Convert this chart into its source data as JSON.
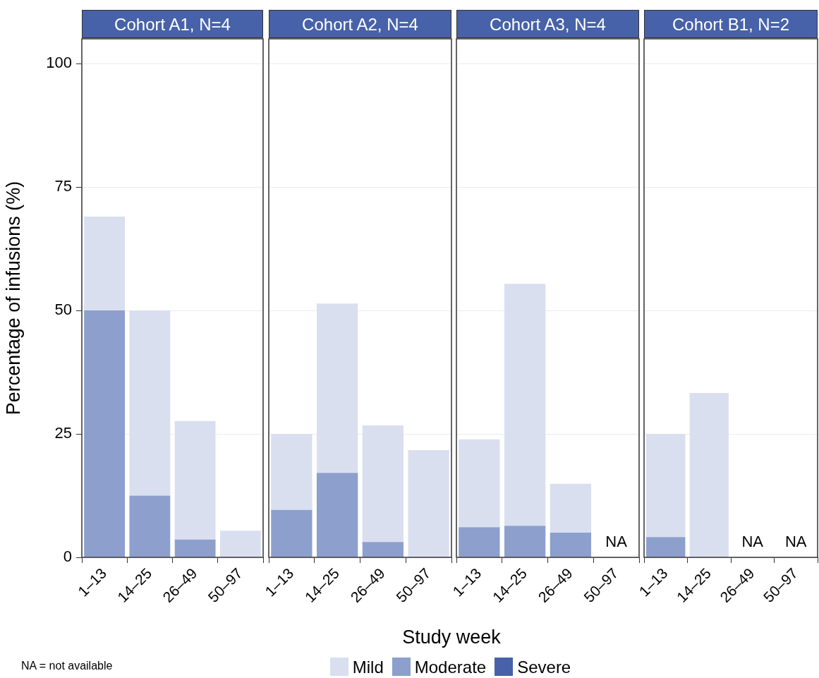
{
  "chart_data": [
    {
      "type": "bar",
      "title": "Cohort A1, N=4",
      "stacked": true,
      "categories": [
        "1–13",
        "14–25",
        "26–49",
        "50–97"
      ],
      "ylabel": "Percentage of infusions (%)",
      "ylim": [
        0,
        105
      ],
      "yticks": [
        0,
        25,
        50,
        75,
        100
      ],
      "grid": "y",
      "legend": "bottom",
      "annotations": [
        "NA = not available"
      ],
      "series": [
        {
          "name": "Severe",
          "color": "#4762a8",
          "values": [
            0,
            0,
            0,
            0
          ]
        },
        {
          "name": "Moderate",
          "color": "#8c9fcd",
          "values": [
            50,
            12.5,
            3.6,
            0
          ]
        },
        {
          "name": "Mild",
          "color": "#d9dfef",
          "values": [
            19,
            37.5,
            24,
            5.4
          ]
        }
      ]
    },
    {
      "type": "bar",
      "title": "Cohort A2, N=4",
      "xlabel": "Study week",
      "stacked": true,
      "categories": [
        "1–13",
        "14–25",
        "26–49",
        "50–97"
      ],
      "ylim": [
        0,
        105
      ],
      "yticks": [
        0,
        25,
        50,
        75,
        100
      ],
      "grid": "y",
      "tick_labels": "x",
      "series": [
        {
          "color": "#4762a8",
          "values": [
            0,
            0,
            0,
            0
          ]
        },
        {
          "color": "#8c9fcd",
          "values": [
            9.6,
            17.1,
            3.1,
            0
          ]
        },
        {
          "color": "#d9dfef",
          "values": [
            15.4,
            34.3,
            23.6,
            21.7
          ]
        }
      ]
    },
    {
      "type": "bar",
      "title": "Cohort A3, N=4",
      "stacked": true,
      "categories": [
        "1–13",
        "14–25",
        "26–49",
        "50–97"
      ],
      "ylim": [
        0,
        105
      ],
      "yticks": [
        0,
        25,
        50,
        75,
        100
      ],
      "grid": "y",
      "tick_labels": "x",
      "annotations": [
        "NA"
      ],
      "series": [
        {
          "color": "#4762a8",
          "values": [
            0,
            0,
            0,
            null
          ]
        },
        {
          "color": "#8c9fcd",
          "values": [
            6.1,
            6.4,
            5,
            null
          ]
        },
        {
          "color": "#d9dfef",
          "values": [
            17.8,
            49,
            9.9,
            null
          ]
        }
      ]
    },
    {
      "type": "bar",
      "title": "Cohort B1, N=2",
      "stacked": true,
      "categories": [
        "1–13",
        "14–25",
        "26–49",
        "50–97"
      ],
      "ylim": [
        0,
        105
      ],
      "yticks": [
        0,
        25,
        50,
        75,
        100
      ],
      "grid": "y",
      "tick_labels": "x",
      "annotations": [
        "NA",
        "NA"
      ],
      "series": [
        {
          "color": "#4762a8",
          "values": [
            0,
            0,
            null,
            null
          ]
        },
        {
          "color": "#8c9fcd",
          "values": [
            4.1,
            0,
            null,
            null
          ]
        },
        {
          "color": "#d9dfef",
          "values": [
            20.9,
            33.3,
            null,
            null
          ]
        }
      ]
    }
  ]
}
